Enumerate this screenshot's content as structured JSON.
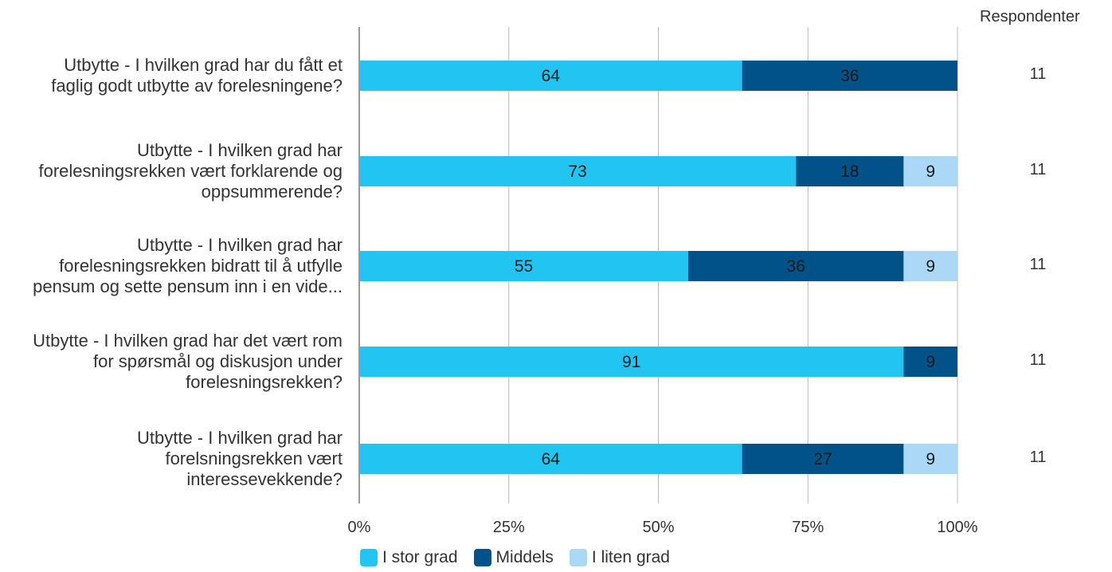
{
  "chart_data": {
    "type": "bar",
    "orientation": "horizontal",
    "stacked": true,
    "categories": [
      [
        "Utbytte - I hvilken grad har du fått et",
        "faglig godt utbytte av forelesningene?"
      ],
      [
        "Utbytte - I hvilken grad har",
        "forelesningsrekken vært forklarende og",
        "oppsummerende?"
      ],
      [
        "Utbytte - I hvilken grad har",
        "forelesningsrekken bidratt til å utfylle",
        "pensum og sette pensum inn i en vide..."
      ],
      [
        "Utbytte - I hvilken grad har det vært rom",
        "for spørsmål og diskusjon under",
        "forelesningsrekken?"
      ],
      [
        "Utbytte - I hvilken grad har",
        "forelsningsrekken vært",
        "interessevekkende?"
      ]
    ],
    "series": [
      {
        "name": "I stor grad",
        "color": "#22c4f2",
        "values": [
          64,
          73,
          55,
          91,
          64
        ]
      },
      {
        "name": "Middels",
        "color": "#005288",
        "values": [
          36,
          18,
          36,
          9,
          27
        ]
      },
      {
        "name": "I liten grad",
        "color": "#aad8f6",
        "values": [
          0,
          9,
          9,
          0,
          9
        ]
      }
    ],
    "xlim": [
      0,
      100
    ],
    "x_ticks": [
      "0%",
      "25%",
      "50%",
      "75%",
      "100%"
    ],
    "grid": true,
    "legend_position": "bottom",
    "respondents_header": "Respondenter",
    "respondents": [
      "11",
      "11",
      "11",
      "11",
      "11"
    ]
  }
}
